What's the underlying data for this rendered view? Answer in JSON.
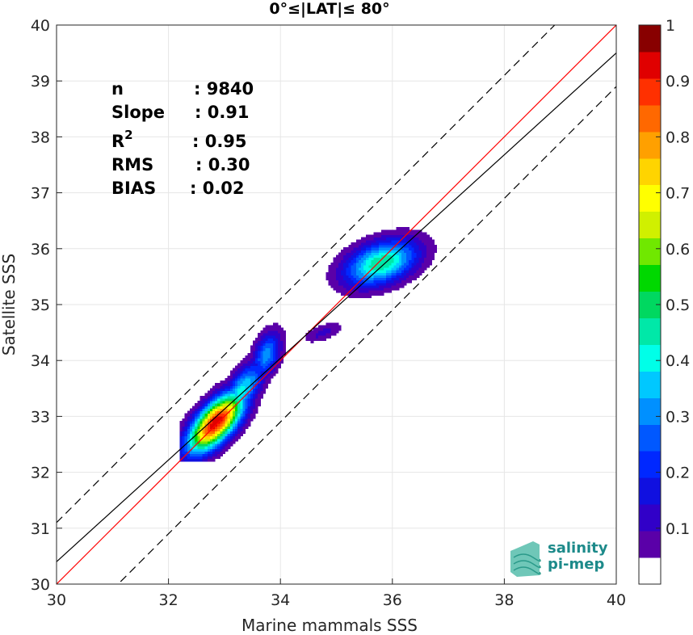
{
  "chart_data": {
    "type": "heatmap",
    "title": "0°≤|LAT|≤ 80°",
    "xlabel": "Marine mammals SSS",
    "ylabel": "Satellite SSS",
    "xlim": [
      30,
      40
    ],
    "ylim": [
      30,
      40
    ],
    "xticks": [
      30,
      32,
      34,
      36,
      38,
      40
    ],
    "yticks": [
      30,
      31,
      32,
      33,
      34,
      35,
      36,
      37,
      38,
      39,
      40
    ],
    "grid": true,
    "colorbar": {
      "range": [
        0,
        1
      ],
      "ticks": [
        "0.1",
        "0.2",
        "0.3",
        "0.4",
        "0.5",
        "0.6",
        "0.7",
        "0.8",
        "0.9",
        "1"
      ],
      "levels": [
        0.05,
        0.1,
        0.15,
        0.2,
        0.25,
        0.3,
        0.35,
        0.4,
        0.45,
        0.5,
        0.55,
        0.6,
        0.65,
        0.7,
        0.75,
        0.8,
        0.85,
        0.9,
        0.95,
        1.0
      ],
      "colors": [
        "#ffffff",
        "#5a00a8",
        "#3100c8",
        "#1010e0",
        "#0028ff",
        "#0058ff",
        "#0090ff",
        "#00c8ff",
        "#00ffe8",
        "#00e8a8",
        "#00d860",
        "#00d800",
        "#70e800",
        "#d0f000",
        "#ffff00",
        "#ffd400",
        "#ffa000",
        "#ff6800",
        "#ff3000",
        "#e00000",
        "#880000"
      ]
    },
    "statistics": [
      {
        "label": "n",
        "value": ": 9840"
      },
      {
        "label": "Slope",
        "value": ": 0.91"
      },
      {
        "label": "R",
        "sup": "2",
        "value": ": 0.95"
      },
      {
        "label": "RMS",
        "value": ": 0.30"
      },
      {
        "label": "BIAS",
        "value": ": 0.02"
      }
    ],
    "reference_lines": [
      {
        "kind": "1:1",
        "slope": 1,
        "intercept": 0,
        "color": "#ff0000",
        "style": "solid"
      },
      {
        "kind": "regression",
        "slope": 0.91,
        "intercept": 3.1,
        "color": "#000000",
        "style": "solid"
      },
      {
        "kind": "upper bound",
        "slope": 1,
        "intercept": 1.1,
        "color": "#000000",
        "style": "dashed"
      },
      {
        "kind": "lower bound",
        "slope": 1,
        "intercept": -1.1,
        "color": "#000000",
        "style": "dashed"
      }
    ],
    "density_clusters": [
      {
        "name": "main",
        "x": 32.85,
        "y": 32.9,
        "peak": 1.0
      },
      {
        "name": "upper-right",
        "x": 35.75,
        "y": 35.7,
        "peak": 0.5
      },
      {
        "name": "small-tail",
        "x": 33.8,
        "y": 34.05,
        "peak": 0.35
      },
      {
        "name": "middle-blob",
        "x": 34.7,
        "y": 34.55,
        "peak": 0.12
      }
    ]
  },
  "logo": {
    "line1": "salinity",
    "line2": "pi-mep"
  }
}
